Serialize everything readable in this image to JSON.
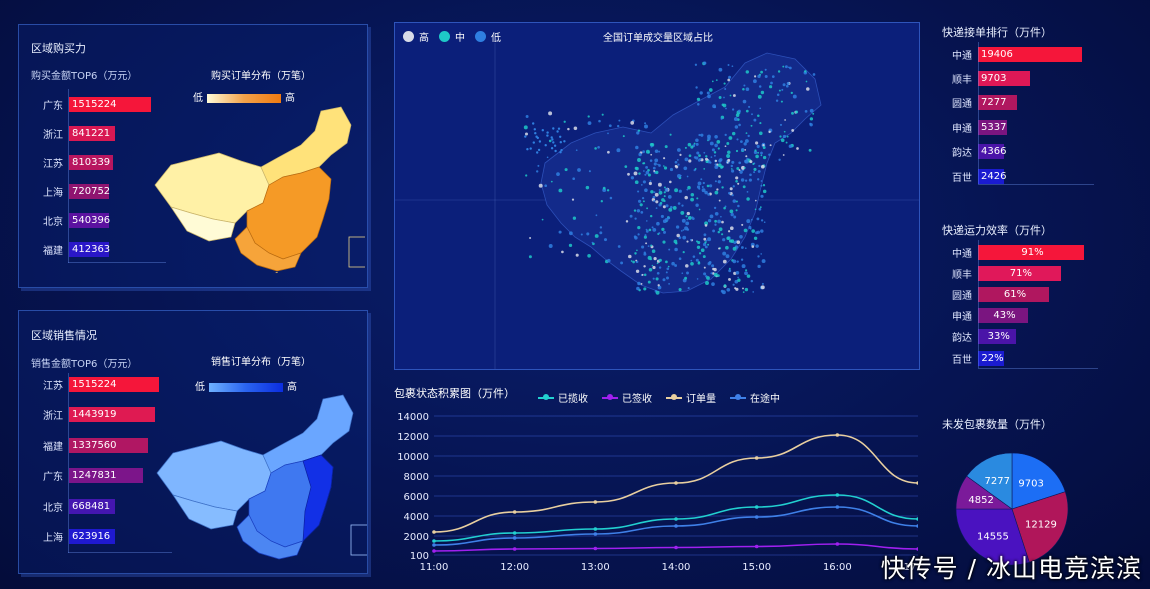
{
  "purchase": {
    "title": "区域购买力",
    "subtitle": "购买金额TOP6（万元）",
    "map_title": "购买订单分布（万笔）",
    "legend_low": "低",
    "legend_high": "高",
    "items": [
      {
        "label": "广东",
        "value": "1515224",
        "num": 1515224,
        "color": "#f5163a"
      },
      {
        "label": "浙江",
        "value": "841221",
        "num": 841221,
        "color": "#d81853"
      },
      {
        "label": "江苏",
        "value": "810339",
        "num": 810339,
        "color": "#b8165f"
      },
      {
        "label": "上海",
        "value": "720752",
        "num": 720752,
        "color": "#8f1470"
      },
      {
        "label": "北京",
        "value": "540396",
        "num": 540396,
        "color": "#5b12a0"
      },
      {
        "label": "福建",
        "value": "412363",
        "num": 412363,
        "color": "#2a17c8"
      }
    ]
  },
  "sales": {
    "title": "区域销售情况",
    "subtitle": "销售金额TOP6（万元）",
    "map_title": "销售订单分布（万笔）",
    "legend_low": "低",
    "legend_high": "高",
    "items": [
      {
        "label": "江苏",
        "value": "1515224",
        "num": 1515224,
        "color": "#f5163a"
      },
      {
        "label": "浙江",
        "value": "1443919",
        "num": 1443919,
        "color": "#df1a52"
      },
      {
        "label": "福建",
        "value": "1337560",
        "num": 1337560,
        "color": "#b01763"
      },
      {
        "label": "广东",
        "value": "1247831",
        "num": 1247831,
        "color": "#7c158a"
      },
      {
        "label": "北京",
        "value": "668481",
        "num": 668481,
        "color": "#4416b0"
      },
      {
        "label": "上海",
        "value": "623916",
        "num": 623916,
        "color": "#1f19d0"
      }
    ]
  },
  "center_map": {
    "title": "全国订单成交量区域占比",
    "legend": [
      {
        "label": "高",
        "color": "#d8dce8"
      },
      {
        "label": "中",
        "color": "#1ec8c8"
      },
      {
        "label": "低",
        "color": "#2f7fe0"
      }
    ]
  },
  "express_rank": {
    "title": "快递接单排行（万件）",
    "items": [
      {
        "label": "中通",
        "value": "19406",
        "num": 19406,
        "color": "#f5163a"
      },
      {
        "label": "顺丰",
        "value": "9703",
        "num": 9703,
        "color": "#de1856"
      },
      {
        "label": "圆通",
        "value": "7277",
        "num": 7277,
        "color": "#b0175f"
      },
      {
        "label": "申通",
        "value": "5337",
        "num": 5337,
        "color": "#7a1580"
      },
      {
        "label": "韵达",
        "value": "4366",
        "num": 4366,
        "color": "#4a14a8"
      },
      {
        "label": "百世",
        "value": "2426",
        "num": 2426,
        "color": "#1a1bd0"
      }
    ]
  },
  "express_eff": {
    "title": "快递运力效率（万件）",
    "items": [
      {
        "label": "中通",
        "value": "91%",
        "num": 91,
        "color": "#f5163a"
      },
      {
        "label": "顺丰",
        "value": "71%",
        "num": 71,
        "color": "#e0185a"
      },
      {
        "label": "圆通",
        "value": "61%",
        "num": 61,
        "color": "#b0175f"
      },
      {
        "label": "申通",
        "value": "43%",
        "num": 43,
        "color": "#7a1580"
      },
      {
        "label": "韵达",
        "value": "33%",
        "num": 33,
        "color": "#4a14a8"
      },
      {
        "label": "百世",
        "value": "22%",
        "num": 22,
        "color": "#1a1bd0"
      }
    ]
  },
  "unsent": {
    "title": "未发包裹数量（万件）"
  },
  "watermark": "快传号 / 冰山电竞滨滨",
  "chart_data": [
    {
      "type": "line",
      "title": "包裹状态积累图（万件）",
      "x": [
        "11:00",
        "12:00",
        "13:00",
        "14:00",
        "15:00",
        "16:00",
        "17:00"
      ],
      "ylim": [
        100,
        14000
      ],
      "yticks": [
        "14000",
        "12000",
        "10000",
        "8000",
        "6000",
        "4000",
        "2000",
        "100"
      ],
      "ytick_values": [
        14000,
        12000,
        10000,
        8000,
        6000,
        4000,
        2000,
        100
      ],
      "series": [
        {
          "name": "已揽收",
          "color": "#22d0d0",
          "values": [
            1500,
            2300,
            2700,
            3700,
            4900,
            6100,
            3700
          ]
        },
        {
          "name": "已签收",
          "color": "#a020f0",
          "values": [
            500,
            700,
            750,
            850,
            950,
            1200,
            700
          ]
        },
        {
          "name": "订单量",
          "color": "#e8cfa0",
          "values": [
            2400,
            4400,
            5400,
            7300,
            9800,
            12100,
            7300
          ]
        },
        {
          "name": "在途中",
          "color": "#3f80e8",
          "values": [
            1100,
            1800,
            2200,
            3000,
            3900,
            4900,
            3000
          ]
        }
      ]
    },
    {
      "type": "pie",
      "title": "未发包裹数量（万件）",
      "values": [
        9703,
        12129,
        14555,
        4852,
        7277
      ],
      "labels": [
        "9703",
        "12129",
        "14555",
        "4852",
        "7277"
      ],
      "colors": [
        "#1c6ef5",
        "#b0165a",
        "#4a12c0",
        "#7b1a9a",
        "#2a8ae0"
      ]
    }
  ]
}
